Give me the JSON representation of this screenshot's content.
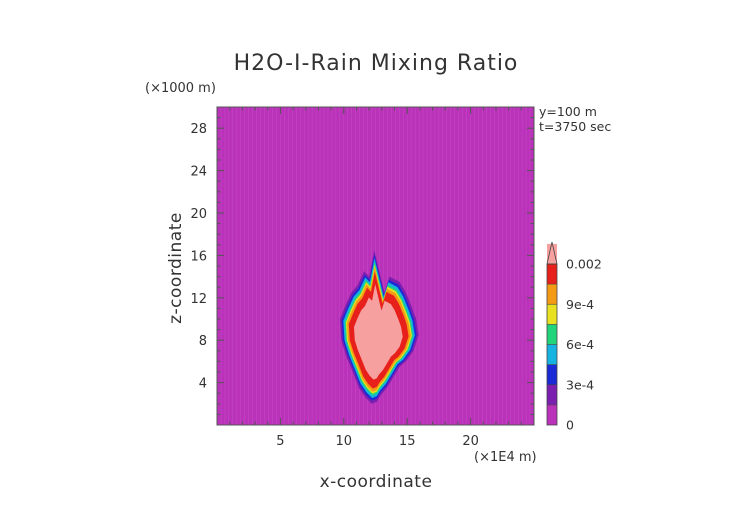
{
  "chart_data": {
    "type": "heatmap",
    "title": "H2O-I-Rain Mixing Ratio",
    "xlabel": "x-coordinate",
    "ylabel": "z-coordinate",
    "x_unit": "(×1E4 m)",
    "y_unit": "(×1000 m)",
    "xlim": [
      0,
      25
    ],
    "ylim": [
      0,
      30
    ],
    "x_ticks": [
      5,
      10,
      15,
      20
    ],
    "y_ticks": [
      4,
      8,
      12,
      16,
      20,
      24,
      28
    ],
    "info": [
      "y=100 m",
      "t=3750 sec"
    ],
    "background_color": "#b932b9",
    "colorbar": {
      "levels": [
        0,
        0.00015,
        0.0003,
        0.00045,
        0.0006,
        0.00075,
        0.0009,
        0.0011,
        0.002
      ],
      "labels": [
        {
          "value": 0,
          "text": "0"
        },
        {
          "value": 0.0003,
          "text": "3e-4"
        },
        {
          "value": 0.0006,
          "text": "6e-4"
        },
        {
          "value": 0.0009,
          "text": "9e-4"
        },
        {
          "value": 0.002,
          "text": "0.002"
        }
      ],
      "colors": [
        "#b932b9",
        "#7a1fb0",
        "#1a2ad6",
        "#17b3e0",
        "#22d47a",
        "#e8e020",
        "#f49a14",
        "#e8201c",
        "#f7a0a0"
      ]
    },
    "field": {
      "outline_x": [
        12.4,
        12.9,
        13.2,
        13.6,
        14.4,
        14.9,
        15.4,
        15.7,
        15.9,
        15.5,
        14.9,
        14.4,
        13.9,
        13.4,
        12.9,
        12.6,
        12.2,
        11.7,
        11.2,
        10.7,
        10.2,
        9.8,
        9.7,
        10.1,
        10.6,
        11.1,
        11.6,
        12.0
      ],
      "outline_z": [
        16.5,
        14.0,
        12.5,
        14.0,
        13.5,
        12.5,
        11.0,
        10.0,
        8.5,
        7.0,
        6.0,
        5.5,
        4.5,
        3.5,
        2.8,
        2.2,
        2.0,
        2.6,
        3.5,
        5.0,
        6.5,
        8.0,
        10.0,
        11.2,
        12.5,
        13.2,
        14.5,
        14.0
      ],
      "center_x": 12.6,
      "center_z": 8.0,
      "shells": [
        {
          "scale": 1.0,
          "level": 1
        },
        {
          "scale": 0.95,
          "level": 2
        },
        {
          "scale": 0.91,
          "level": 3
        },
        {
          "scale": 0.87,
          "level": 4
        },
        {
          "scale": 0.84,
          "level": 5
        },
        {
          "scale": 0.81,
          "level": 6
        },
        {
          "scale": 0.76,
          "level": 7
        },
        {
          "scale": 0.62,
          "level": 8
        }
      ]
    }
  }
}
